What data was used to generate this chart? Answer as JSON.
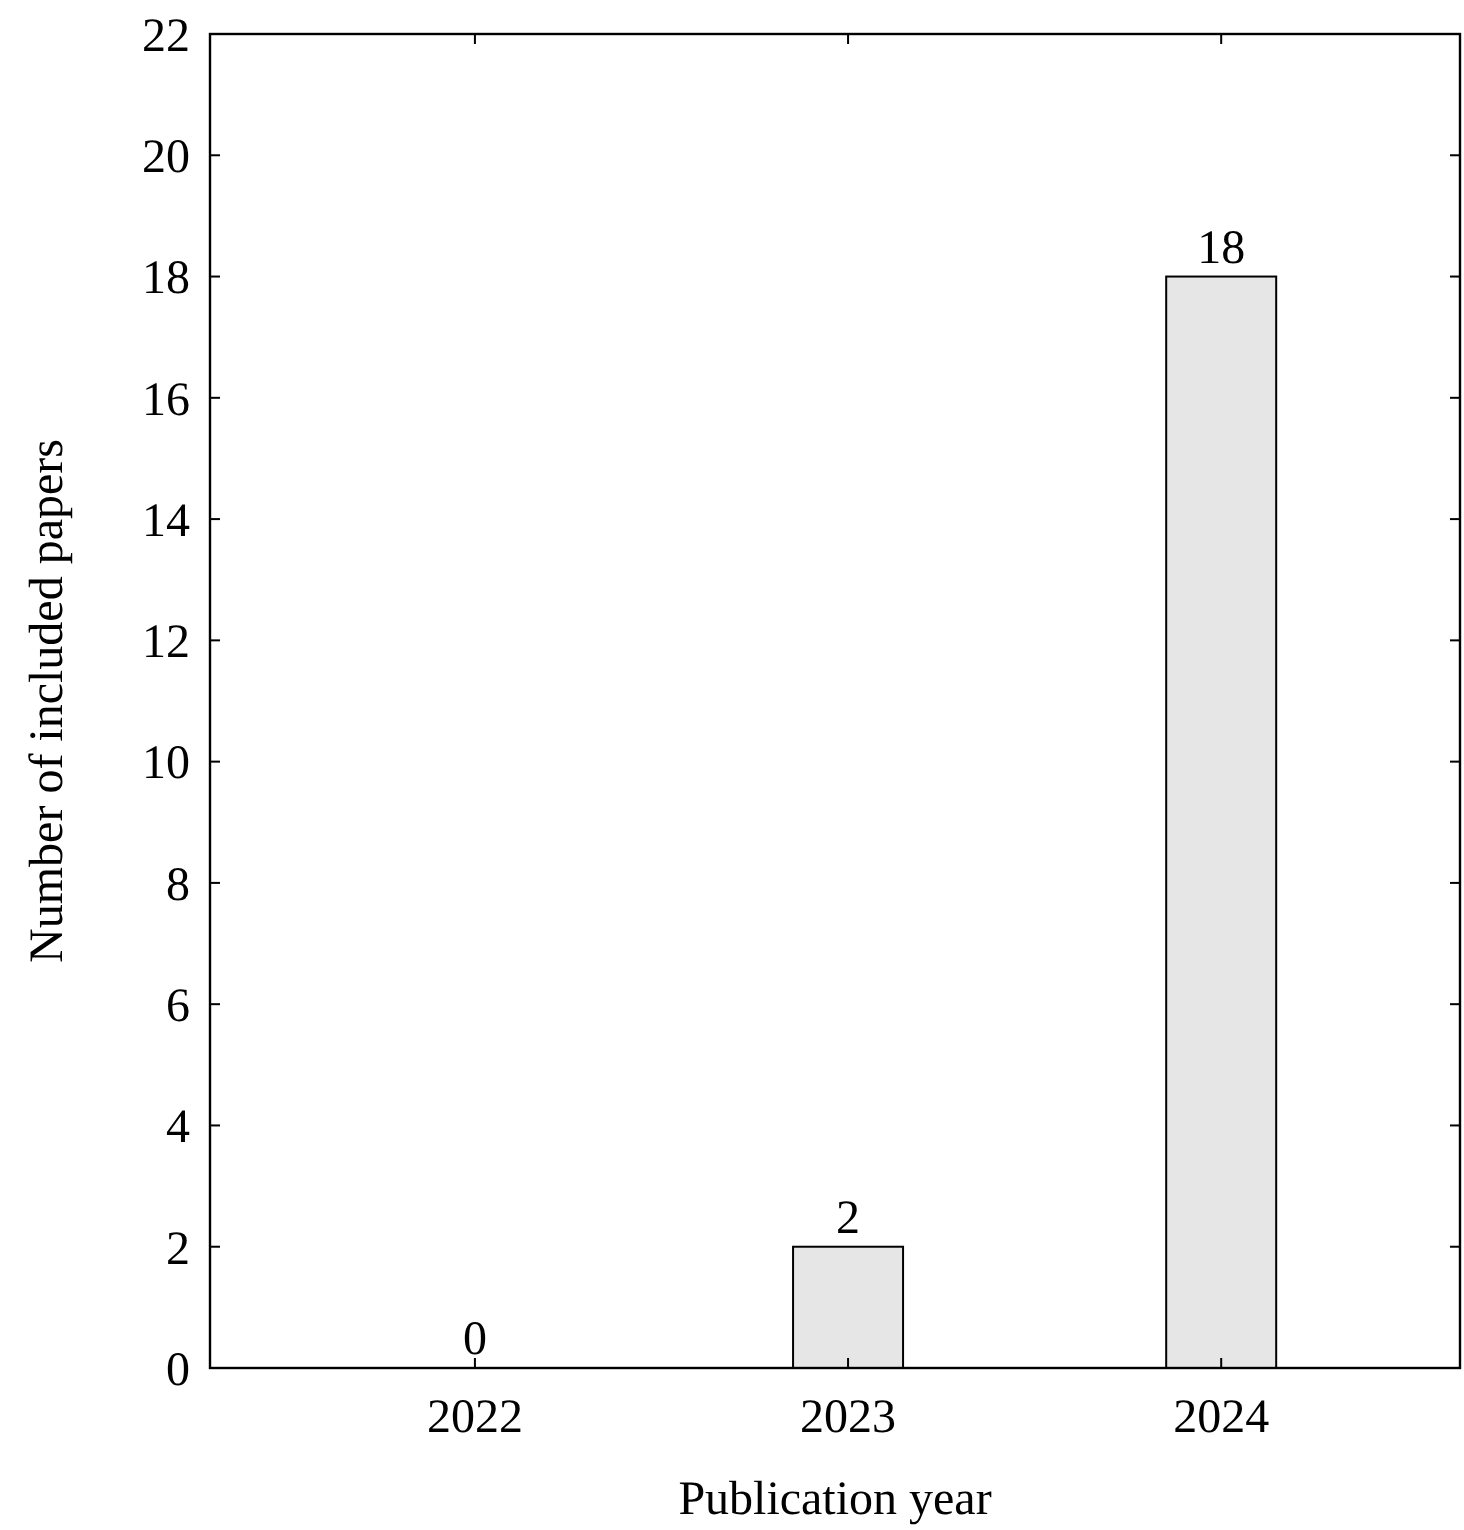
{
  "chart_data": {
    "type": "bar",
    "xlabel": "Publication year",
    "ylabel": "Number of included papers",
    "categories": [
      "2022",
      "2023",
      "2024"
    ],
    "values": [
      0,
      2,
      18
    ],
    "color": "#e6e6e6",
    "ylim": [
      0,
      22
    ],
    "yticks": [
      0,
      2,
      4,
      6,
      8,
      10,
      12,
      14,
      16,
      18,
      20,
      22
    ],
    "grid": false,
    "data_labels": true
  }
}
